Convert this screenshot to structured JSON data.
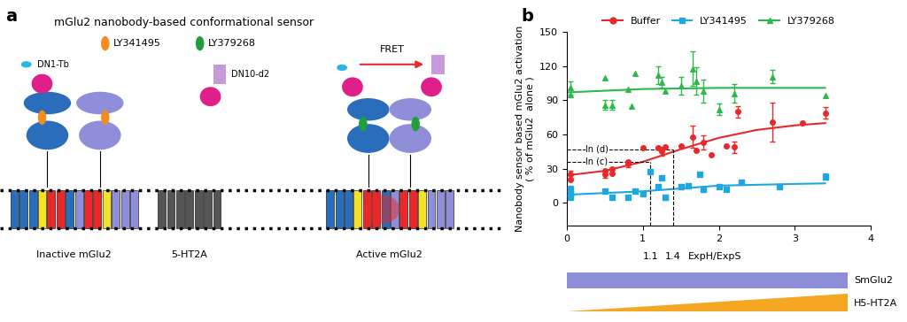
{
  "diagram": {
    "panel_label": "a",
    "title": "mGlu2 nanobody-based conformational sensor",
    "ligands": [
      {
        "label": "LY341495",
        "color": "#f28c1e"
      },
      {
        "label": "LY379268",
        "color": "#1f9e3a"
      }
    ],
    "labels": {
      "donor": "DN1-Tb",
      "acceptor": "DN10-d2",
      "fret": "FRET",
      "inactive": "Inactive mGlu2",
      "partner": "5-HT2A",
      "active": "Active mGlu2"
    }
  },
  "chart_data": {
    "panel_label": "b",
    "type": "scatter",
    "x_label": "ExpH/ExpS",
    "y_label": "Nanobody sensor based mGlu2 activation\n( % of mGlu2  alone )",
    "xlim": [
      0,
      4
    ],
    "xticks": [
      0,
      1,
      2,
      3,
      4
    ],
    "ylim": [
      -20,
      150
    ],
    "yticks": [
      0,
      30,
      60,
      90,
      120,
      150
    ],
    "legend": "lower center",
    "series": [
      {
        "name": "Buffer",
        "color": "#e8282b",
        "marker": "circle",
        "x": [
          0.05,
          0.05,
          0.5,
          0.5,
          0.6,
          0.6,
          0.8,
          0.8,
          1.0,
          1.2,
          1.25,
          1.3,
          1.5,
          1.65,
          1.7,
          1.8,
          1.9,
          2.1,
          2.2,
          2.25,
          2.7,
          3.1,
          3.4
        ],
        "values": [
          25,
          20,
          28,
          25,
          30,
          26,
          34,
          36,
          48,
          48,
          45,
          49,
          50,
          58,
          46,
          53,
          42,
          50,
          49,
          80,
          71,
          70,
          79
        ],
        "errors": [
          3,
          0,
          0,
          3,
          0,
          0,
          3,
          0,
          0,
          0,
          4,
          0,
          0,
          10,
          0,
          6,
          0,
          0,
          5,
          5,
          17,
          0,
          5
        ],
        "fit": {
          "x": [
            0,
            0.5,
            1,
            1.5,
            2,
            2.5,
            3,
            3.4
          ],
          "values": [
            24,
            28,
            36,
            47,
            57,
            64,
            68,
            70
          ]
        }
      },
      {
        "name": "LY341495",
        "color": "#1ea7e0",
        "marker": "square",
        "x": [
          0.05,
          0.05,
          0.05,
          0.5,
          0.6,
          0.8,
          0.9,
          1.0,
          1.1,
          1.2,
          1.25,
          1.3,
          1.5,
          1.6,
          1.75,
          1.8,
          2.0,
          2.1,
          2.3,
          2.8,
          3.4
        ],
        "values": [
          12,
          8,
          5,
          10,
          5,
          5,
          10,
          8,
          27,
          14,
          22,
          5,
          14,
          15,
          25,
          12,
          14,
          12,
          18,
          14,
          23
        ],
        "errors": [
          3,
          0,
          0,
          0,
          0,
          0,
          0,
          0,
          0,
          0,
          0,
          0,
          0,
          0,
          0,
          0,
          0,
          0,
          0,
          0,
          3
        ],
        "fit": {
          "x": [
            0,
            1,
            2,
            3,
            3.4
          ],
          "values": [
            7,
            10,
            15,
            16.5,
            17
          ]
        }
      },
      {
        "name": "LY379268",
        "color": "#2db84a",
        "marker": "triangle",
        "x": [
          0.05,
          0.05,
          0.5,
          0.5,
          0.6,
          0.8,
          0.85,
          0.9,
          1.2,
          1.25,
          1.3,
          1.5,
          1.65,
          1.7,
          1.8,
          2.0,
          2.2,
          2.7,
          3.4
        ],
        "values": [
          101,
          95,
          86,
          110,
          86,
          100,
          85,
          114,
          112,
          106,
          98,
          103,
          118,
          107,
          98,
          82,
          96,
          111,
          94
        ],
        "errors": [
          6,
          0,
          4,
          0,
          4,
          0,
          0,
          0,
          8,
          5,
          0,
          8,
          15,
          12,
          10,
          5,
          8,
          6,
          0
        ],
        "fit": {
          "x": [
            0,
            1,
            2,
            3.4
          ],
          "values": [
            97,
            100,
            101,
            101
          ]
        }
      }
    ],
    "annotations": [
      {
        "label": "ln (d)",
        "x": 1.4,
        "y": 47
      },
      {
        "label": "ln (c)",
        "x": 1.1,
        "y": 36
      }
    ],
    "expression_bars": [
      {
        "label": "SmGlu2",
        "color": "#8f8fd9",
        "shape": "bar"
      },
      {
        "label": "H5-HT2A",
        "color": "#f5a623",
        "shape": "ramp"
      }
    ]
  }
}
